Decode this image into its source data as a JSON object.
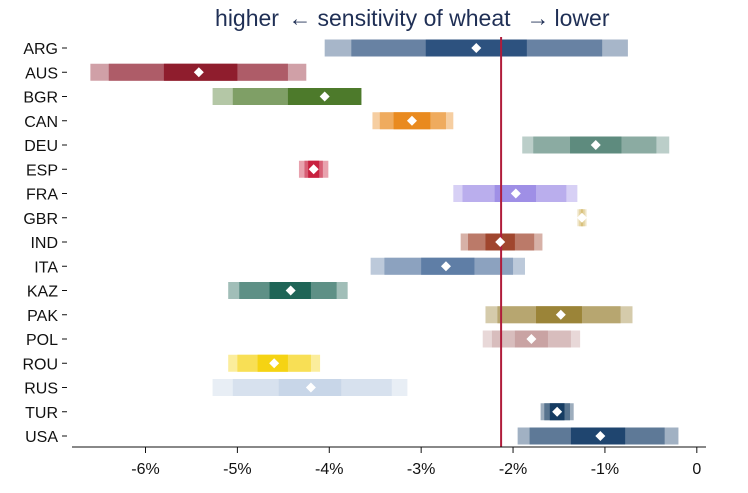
{
  "chart_data": {
    "type": "range-bar",
    "title_left": "higher",
    "title_arrow_left": "←",
    "title_middle": "sensitivity of wheat",
    "title_arrow_right": "→",
    "title_right": "lower",
    "xlabel": "",
    "ylabel": "",
    "xlim": [
      -6.8,
      0.1
    ],
    "x_ticks": [
      {
        "value": -6,
        "label": "-6%"
      },
      {
        "value": -5,
        "label": "-5%"
      },
      {
        "value": -4,
        "label": "-4%"
      },
      {
        "value": -3,
        "label": "-3%"
      },
      {
        "value": -2,
        "label": "-2%"
      },
      {
        "value": -1,
        "label": "-1%"
      },
      {
        "value": 0,
        "label": "0"
      }
    ],
    "reference_line": {
      "value": -2.13,
      "color": "#b01c3b"
    },
    "grid": false,
    "rows": [
      {
        "label": "ARG",
        "color": "#2d527f",
        "outer": [
          -4.05,
          -0.75
        ],
        "mid": [
          -3.76,
          -1.03
        ],
        "inner": [
          -2.95,
          -1.85
        ],
        "point": -2.4
      },
      {
        "label": "AUS",
        "color": "#8f1d2d",
        "outer": [
          -6.6,
          -4.25
        ],
        "mid": [
          -6.4,
          -4.45
        ],
        "inner": [
          -5.8,
          -5.0
        ],
        "point": -5.42
      },
      {
        "label": "BGR",
        "color": "#4d7a2b",
        "outer": [
          -5.27,
          -3.85
        ],
        "mid": [
          -5.05,
          -4.05
        ],
        "inner": [
          -4.45,
          -3.65
        ],
        "point": -4.05
      },
      {
        "label": "CAN",
        "color": "#e98a1f",
        "outer": [
          -3.53,
          -2.65
        ],
        "mid": [
          -3.45,
          -2.73
        ],
        "inner": [
          -3.3,
          -2.9
        ],
        "point": -3.1
      },
      {
        "label": "DEU",
        "color": "#5e8b7e",
        "outer": [
          -1.9,
          -0.3
        ],
        "mid": [
          -1.78,
          -0.44
        ],
        "inner": [
          -1.38,
          -0.82
        ],
        "point": -1.1
      },
      {
        "label": "ESP",
        "color": "#c8213f",
        "outer": [
          -4.33,
          -4.01
        ],
        "mid": [
          -4.27,
          -4.07
        ],
        "inner": [
          -4.23,
          -4.11
        ],
        "point": -4.17
      },
      {
        "label": "FRA",
        "color": "#9f8fe6",
        "outer": [
          -2.65,
          -1.3
        ],
        "mid": [
          -2.55,
          -1.42
        ],
        "inner": [
          -2.2,
          -1.75
        ],
        "point": -1.97
      },
      {
        "label": "GBR",
        "color": "#d8c07a",
        "outer": [
          -1.3,
          -1.2
        ],
        "mid": [
          -1.28,
          -1.22
        ],
        "inner": [
          -1.26,
          -1.24
        ],
        "point": -1.25
      },
      {
        "label": "IND",
        "color": "#a0462e",
        "outer": [
          -2.57,
          -1.68
        ],
        "mid": [
          -2.49,
          -1.77
        ],
        "inner": [
          -2.3,
          -1.98
        ],
        "point": -2.14
      },
      {
        "label": "ITA",
        "color": "#5f7ea6",
        "outer": [
          -3.55,
          -1.87
        ],
        "mid": [
          -3.4,
          -2.0
        ],
        "inner": [
          -3.0,
          -2.42
        ],
        "point": -2.73
      },
      {
        "label": "KAZ",
        "color": "#1f6557",
        "outer": [
          -5.1,
          -3.8
        ],
        "mid": [
          -4.98,
          -3.92
        ],
        "inner": [
          -4.65,
          -4.2
        ],
        "point": -4.42
      },
      {
        "label": "PAK",
        "color": "#9b8438",
        "outer": [
          -2.3,
          -0.7
        ],
        "mid": [
          -2.17,
          -0.83
        ],
        "inner": [
          -1.75,
          -1.25
        ],
        "point": -1.48
      },
      {
        "label": "POL",
        "color": "#c9a3a3",
        "outer": [
          -2.33,
          -1.27
        ],
        "mid": [
          -2.23,
          -1.37
        ],
        "inner": [
          -1.98,
          -1.62
        ],
        "point": -1.8
      },
      {
        "label": "ROU",
        "color": "#f5d313",
        "outer": [
          -5.1,
          -4.1
        ],
        "mid": [
          -5.0,
          -4.2
        ],
        "inner": [
          -4.78,
          -4.45
        ],
        "point": -4.6
      },
      {
        "label": "RUS",
        "color": "#c8d6e8",
        "outer": [
          -5.27,
          -3.15
        ],
        "mid": [
          -5.05,
          -3.32
        ],
        "inner": [
          -4.55,
          -3.87
        ],
        "point": -4.2
      },
      {
        "label": "TUR",
        "color": "#163c62",
        "outer": [
          -1.7,
          -1.34
        ],
        "mid": [
          -1.66,
          -1.38
        ],
        "inner": [
          -1.6,
          -1.44
        ],
        "point": -1.52
      },
      {
        "label": "USA",
        "color": "#1f456f",
        "outer": [
          -1.95,
          -0.2
        ],
        "mid": [
          -1.82,
          -0.35
        ],
        "inner": [
          -1.37,
          -0.78
        ],
        "point": -1.05
      }
    ]
  }
}
